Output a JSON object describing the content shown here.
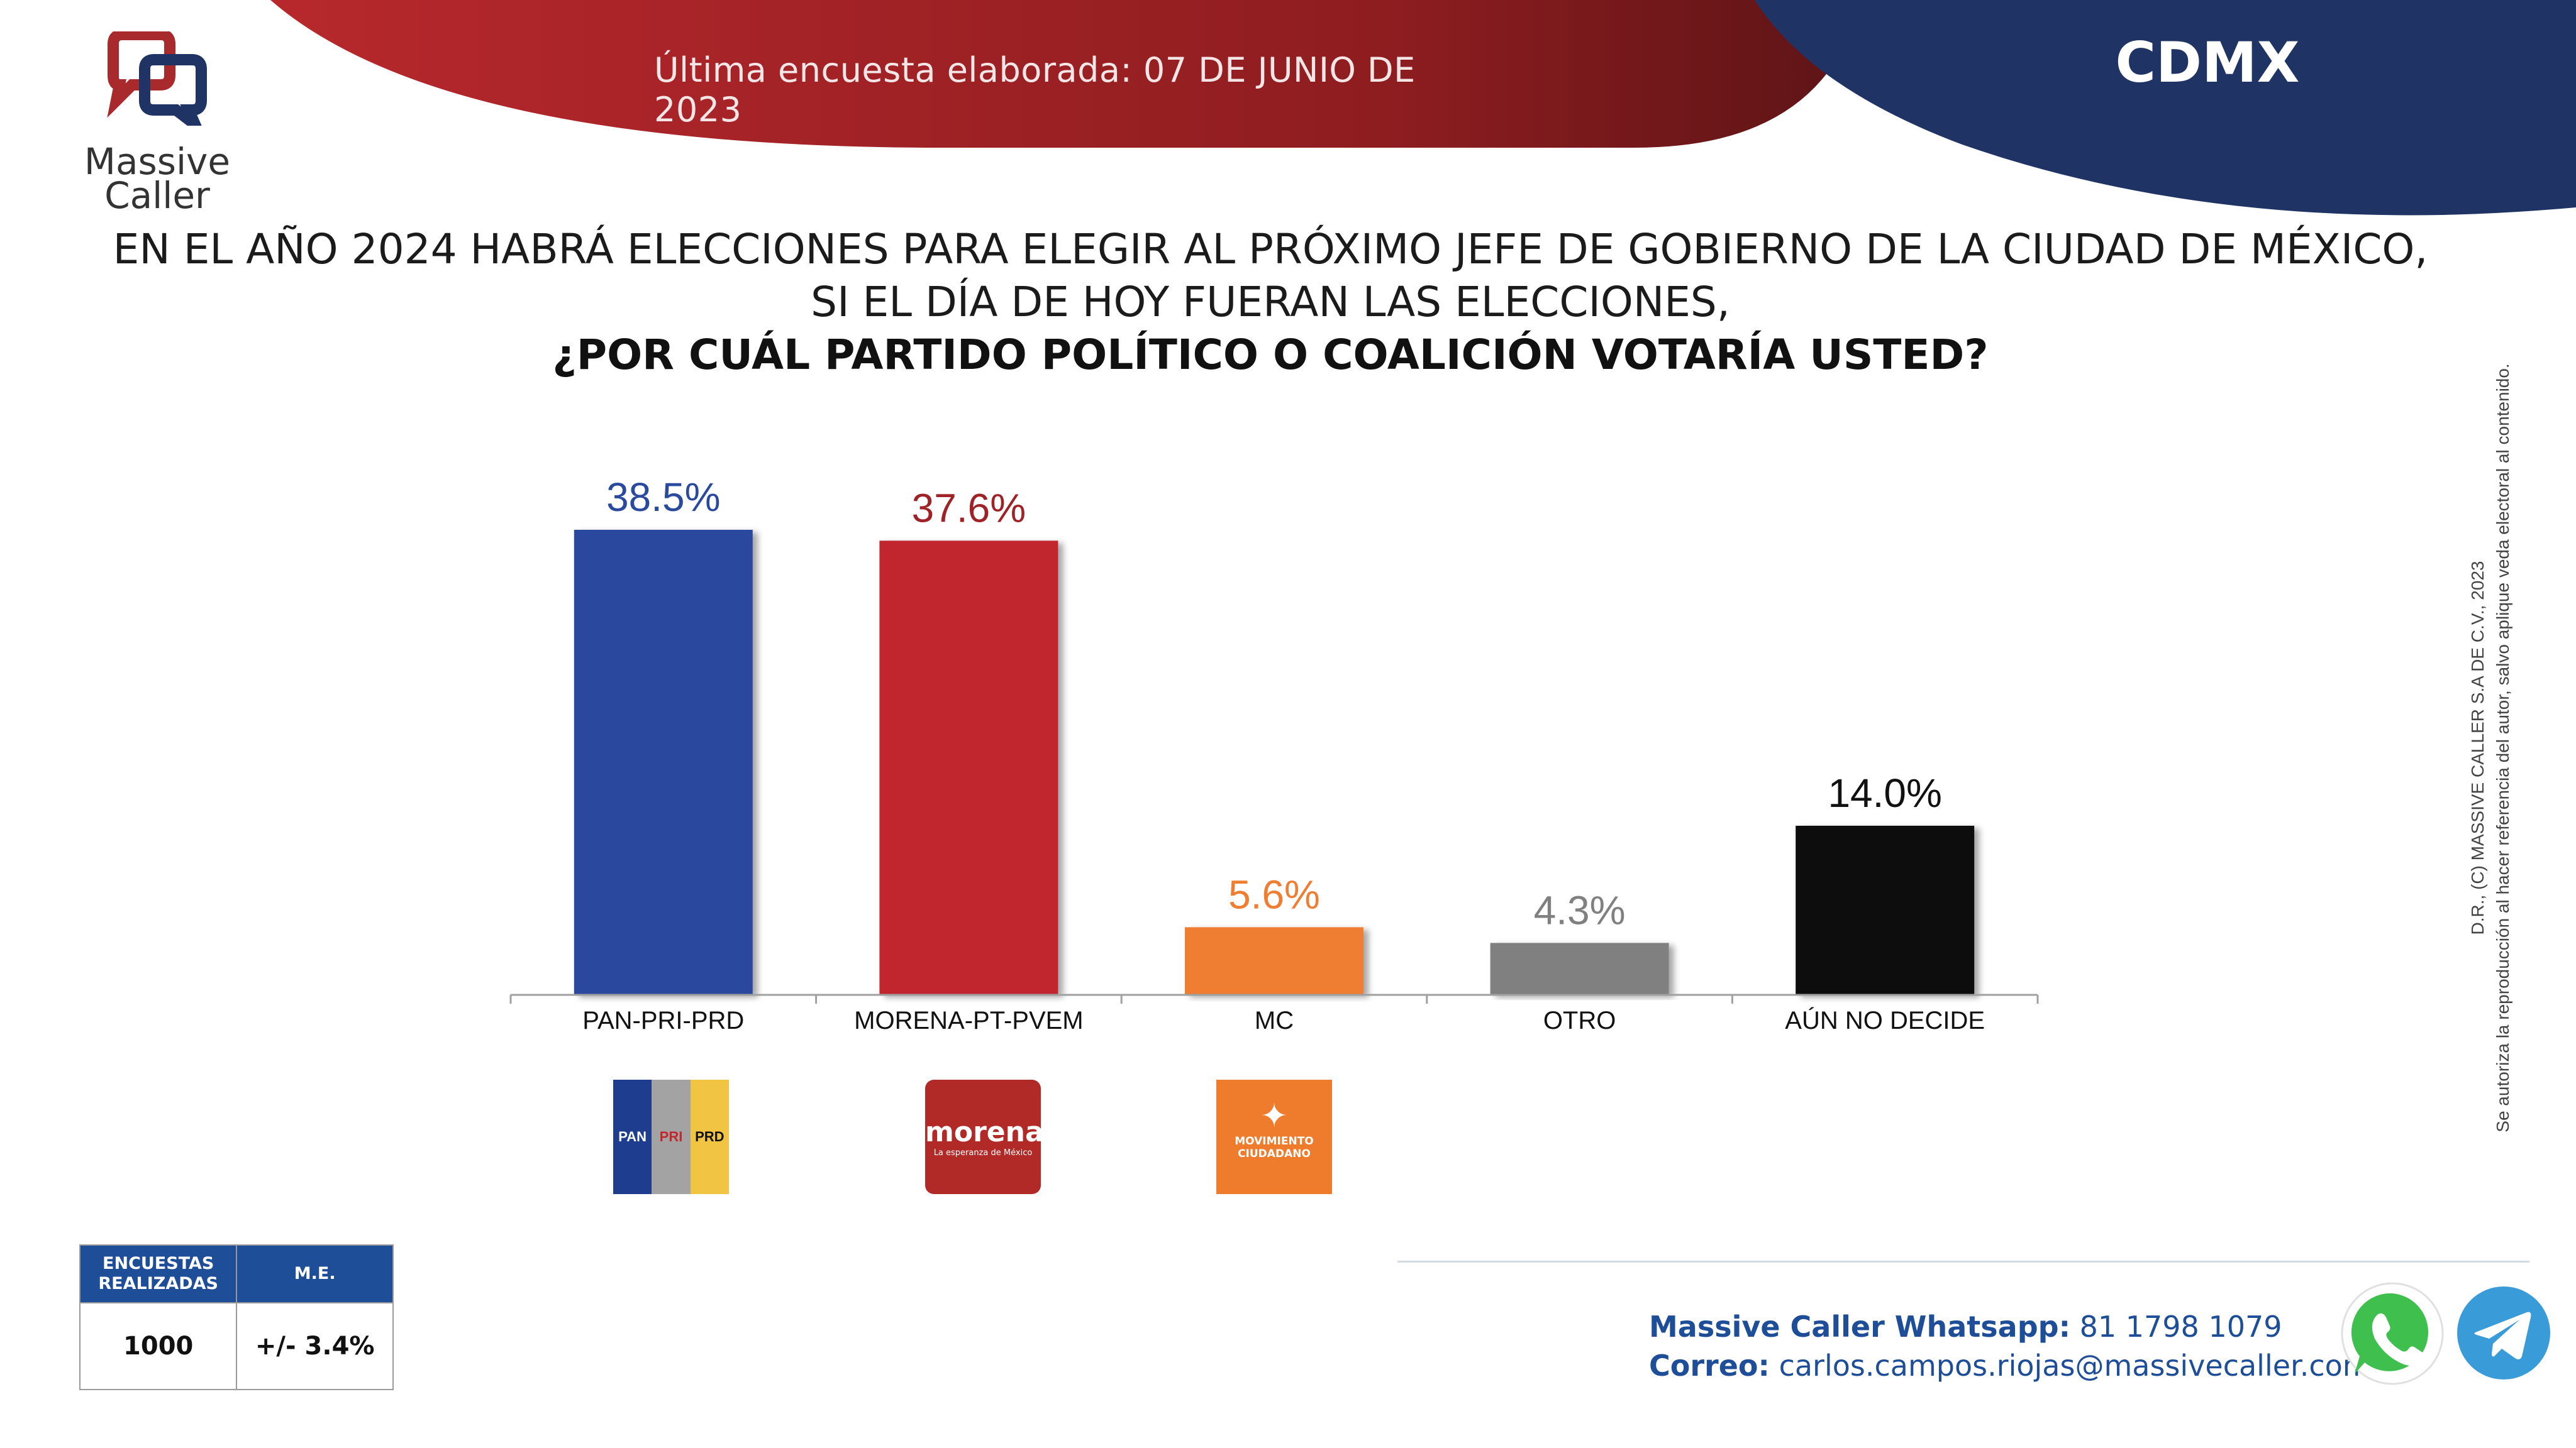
{
  "header": {
    "date_text": "Última encuesta elaborada: 07 DE JUNIO DE 2023",
    "region": "CDMX",
    "colors": {
      "red": "#b7282c",
      "navy": "#1f3365"
    }
  },
  "logo": {
    "name_line1": "Massive",
    "name_line2": "Caller",
    "icon": "massive-caller-logo-icon"
  },
  "question": {
    "line1": "EN EL AÑO 2024 HABRÁ ELECCIONES PARA ELEGIR AL PRÓXIMO JEFE DE GOBIERNO DE  LA CIUDAD DE MÉXICO,",
    "line2": "SI EL DÍA DE HOY FUERAN LAS ELECCIONES,",
    "line3": "¿POR CUÁL PARTIDO POLÍTICO O COALICIÓN VOTARÍA USTED?"
  },
  "chart_data": {
    "type": "bar",
    "categories": [
      "PAN-PRI-PRD",
      "MORENA-PT-PVEM",
      "MC",
      "OTRO",
      "AÚN NO DECIDE"
    ],
    "values": [
      38.5,
      37.6,
      5.6,
      4.3,
      14.0
    ],
    "value_labels": [
      "38.5%",
      "37.6%",
      "5.6%",
      "4.3%",
      "14.0%"
    ],
    "colors": [
      "#2a4a9e",
      "#c1272d",
      "#ef7d32",
      "#808080",
      "#0a0a0a"
    ],
    "label_colors": [
      "#2a4a9e",
      "#9e2226",
      "#ef7d32",
      "#808080",
      "#111111"
    ],
    "ylim": [
      0,
      40
    ],
    "grid": false,
    "legend": "none"
  },
  "party_logos": {
    "pan": {
      "labels": [
        "PAN",
        "PRI",
        "PRD"
      ],
      "colors": [
        "#1f3d8f",
        "#a3a3a3",
        "#f2c443"
      ]
    },
    "morena": {
      "name": "morena",
      "tagline": "La esperanza de México"
    },
    "mc": {
      "line1": "MOVIMIENTO",
      "line2": "CIUDADANO",
      "icon": "eagle-icon"
    }
  },
  "copyright": {
    "line1": "D.R., (C) MASSIVE CALLER S.A DE C.V., 2023",
    "line2": "Se autoriza la reproducción al hacer referencia del autor, salvo aplique veda electoral al contenido."
  },
  "stats": {
    "col1_header": "ENCUESTAS REALIZADAS",
    "col2_header": "M.E.",
    "col1_value": "1000",
    "col2_value": "+/- 3.4%"
  },
  "contact": {
    "whatsapp_label": "Massive Caller Whatsapp:",
    "whatsapp_value": "81 1798 1079",
    "email_label": "Correo:",
    "email_value": "carlos.campos.riojas@massivecaller.com",
    "icons": [
      "whatsapp-icon",
      "telegram-icon"
    ]
  }
}
